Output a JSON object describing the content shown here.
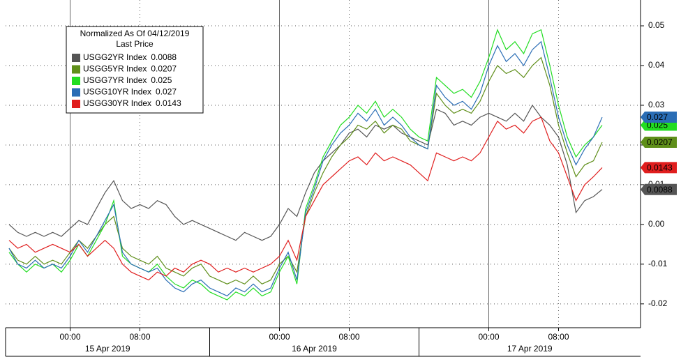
{
  "chart_data": {
    "type": "line",
    "legend_title": "Normalized As Of 04/12/2019",
    "legend_subtitle": "Last Price",
    "dates": [
      "15 Apr 2019",
      "16 Apr 2019",
      "17 Apr 2019"
    ],
    "x": [
      -7,
      -6,
      -5,
      -4,
      -3,
      -2,
      -1,
      0,
      1,
      2,
      3,
      4,
      5,
      6,
      7,
      8,
      9,
      10,
      11,
      12,
      13,
      14,
      15,
      16,
      17,
      18,
      19,
      20,
      21,
      22,
      23,
      24,
      25,
      26,
      27,
      28,
      29,
      30,
      31,
      32,
      33,
      34,
      35,
      36,
      37,
      38,
      39,
      40,
      41,
      42,
      43,
      44,
      45,
      46,
      47,
      48,
      49,
      50,
      51,
      52,
      53,
      54,
      55,
      56,
      57,
      58,
      59,
      60,
      61
    ],
    "xlim": [
      -7.4,
      65.4
    ],
    "xticks": [
      {
        "value": 0,
        "label": "00:00"
      },
      {
        "value": 8,
        "label": "08:00"
      },
      {
        "value": 24,
        "label": "00:00"
      },
      {
        "value": 32,
        "label": "08:00"
      },
      {
        "value": 48,
        "label": "00:00"
      },
      {
        "value": 56,
        "label": "08:00"
      }
    ],
    "ylim": [
      -0.026,
      0.0565
    ],
    "yticks": [
      -0.02,
      -0.01,
      {
        "value": 0,
        "label": "0.00"
      },
      0.01,
      0.02,
      0.03,
      0.04,
      0.05
    ],
    "grid": true,
    "legend": "upper left",
    "series": [
      {
        "name": "USGG2YR Index",
        "last": 0.0088,
        "color": "#555555",
        "text_color": "#ffffff",
        "values": [
          0.0,
          -0.002,
          -0.003,
          -0.002,
          -0.003,
          -0.002,
          -0.003,
          -0.001,
          0.001,
          0.0,
          0.004,
          0.008,
          0.011,
          0.006,
          0.004,
          0.005,
          0.004,
          0.006,
          0.005,
          0.002,
          0.0,
          0.001,
          0.0,
          -0.001,
          -0.002,
          -0.003,
          -0.004,
          -0.002,
          -0.003,
          -0.004,
          -0.003,
          0.0,
          0.004,
          0.002,
          0.008,
          0.013,
          0.016,
          0.018,
          0.02,
          0.023,
          0.024,
          0.022,
          0.025,
          0.024,
          0.025,
          0.023,
          0.022,
          0.021,
          0.02,
          0.029,
          0.028,
          0.025,
          0.026,
          0.025,
          0.027,
          0.028,
          0.027,
          0.026,
          0.028,
          0.026,
          0.03,
          0.027,
          0.025,
          0.022,
          0.015,
          0.003,
          0.006,
          0.007,
          0.0088
        ]
      },
      {
        "name": "USGG5YR Index",
        "last": 0.0207,
        "color": "#5f8f1a",
        "text_color": "#ffffff",
        "values": [
          -0.006,
          -0.009,
          -0.01,
          -0.008,
          -0.01,
          -0.009,
          -0.01,
          -0.007,
          -0.004,
          -0.006,
          -0.003,
          0.0,
          0.002,
          -0.006,
          -0.008,
          -0.009,
          -0.01,
          -0.008,
          -0.011,
          -0.012,
          -0.013,
          -0.011,
          -0.01,
          -0.013,
          -0.014,
          -0.015,
          -0.014,
          -0.015,
          -0.013,
          -0.015,
          -0.014,
          -0.01,
          -0.008,
          -0.012,
          0.002,
          0.008,
          0.013,
          0.017,
          0.02,
          0.022,
          0.025,
          0.024,
          0.026,
          0.023,
          0.025,
          0.024,
          0.021,
          0.02,
          0.019,
          0.033,
          0.03,
          0.028,
          0.029,
          0.028,
          0.031,
          0.036,
          0.04,
          0.038,
          0.039,
          0.037,
          0.04,
          0.042,
          0.035,
          0.025,
          0.018,
          0.012,
          0.015,
          0.016,
          0.0207
        ]
      },
      {
        "name": "USGG7YR Index",
        "last": 0.025,
        "color": "#22dd22",
        "text_color": "#000000",
        "values": [
          -0.007,
          -0.01,
          -0.012,
          -0.01,
          -0.011,
          -0.01,
          -0.012,
          -0.009,
          -0.005,
          -0.008,
          -0.004,
          0.0,
          0.006,
          -0.008,
          -0.01,
          -0.011,
          -0.012,
          -0.01,
          -0.013,
          -0.015,
          -0.016,
          -0.014,
          -0.015,
          -0.017,
          -0.018,
          -0.019,
          -0.017,
          -0.018,
          -0.016,
          -0.018,
          -0.017,
          -0.012,
          -0.008,
          -0.015,
          0.004,
          0.01,
          0.017,
          0.021,
          0.025,
          0.027,
          0.03,
          0.028,
          0.031,
          0.027,
          0.029,
          0.027,
          0.024,
          0.022,
          0.021,
          0.037,
          0.035,
          0.033,
          0.034,
          0.032,
          0.036,
          0.042,
          0.049,
          0.044,
          0.046,
          0.043,
          0.048,
          0.049,
          0.04,
          0.03,
          0.022,
          0.017,
          0.02,
          0.022,
          0.025
        ]
      },
      {
        "name": "USGG10YR Index",
        "last": 0.027,
        "color": "#2a6db5",
        "text_color": "#ffffff",
        "values": [
          -0.006,
          -0.01,
          -0.011,
          -0.009,
          -0.011,
          -0.01,
          -0.011,
          -0.008,
          -0.004,
          -0.007,
          -0.003,
          0.001,
          0.005,
          -0.007,
          -0.01,
          -0.011,
          -0.012,
          -0.011,
          -0.014,
          -0.016,
          -0.017,
          -0.015,
          -0.014,
          -0.016,
          -0.017,
          -0.018,
          -0.016,
          -0.017,
          -0.015,
          -0.017,
          -0.016,
          -0.011,
          -0.007,
          -0.014,
          0.003,
          0.009,
          0.016,
          0.02,
          0.023,
          0.025,
          0.028,
          0.026,
          0.029,
          0.025,
          0.027,
          0.025,
          0.022,
          0.02,
          0.019,
          0.035,
          0.032,
          0.03,
          0.031,
          0.029,
          0.033,
          0.04,
          0.045,
          0.041,
          0.043,
          0.04,
          0.044,
          0.046,
          0.037,
          0.027,
          0.02,
          0.015,
          0.019,
          0.022,
          0.027
        ]
      },
      {
        "name": "USGG30YR Index",
        "last": 0.0143,
        "color": "#e01e1e",
        "text_color": "#ffffff",
        "values": [
          -0.004,
          -0.006,
          -0.005,
          -0.007,
          -0.006,
          -0.005,
          -0.006,
          -0.007,
          -0.005,
          -0.008,
          -0.006,
          -0.004,
          -0.006,
          -0.01,
          -0.012,
          -0.013,
          -0.014,
          -0.012,
          -0.013,
          -0.011,
          -0.012,
          -0.01,
          -0.009,
          -0.01,
          -0.012,
          -0.011,
          -0.012,
          -0.011,
          -0.012,
          -0.011,
          -0.01,
          -0.008,
          -0.004,
          -0.009,
          0.002,
          0.006,
          0.01,
          0.012,
          0.014,
          0.016,
          0.017,
          0.015,
          0.018,
          0.016,
          0.017,
          0.016,
          0.015,
          0.013,
          0.011,
          0.018,
          0.017,
          0.016,
          0.017,
          0.016,
          0.018,
          0.022,
          0.026,
          0.024,
          0.025,
          0.023,
          0.026,
          0.027,
          0.021,
          0.018,
          0.012,
          0.006,
          0.01,
          0.012,
          0.0143
        ]
      }
    ]
  }
}
